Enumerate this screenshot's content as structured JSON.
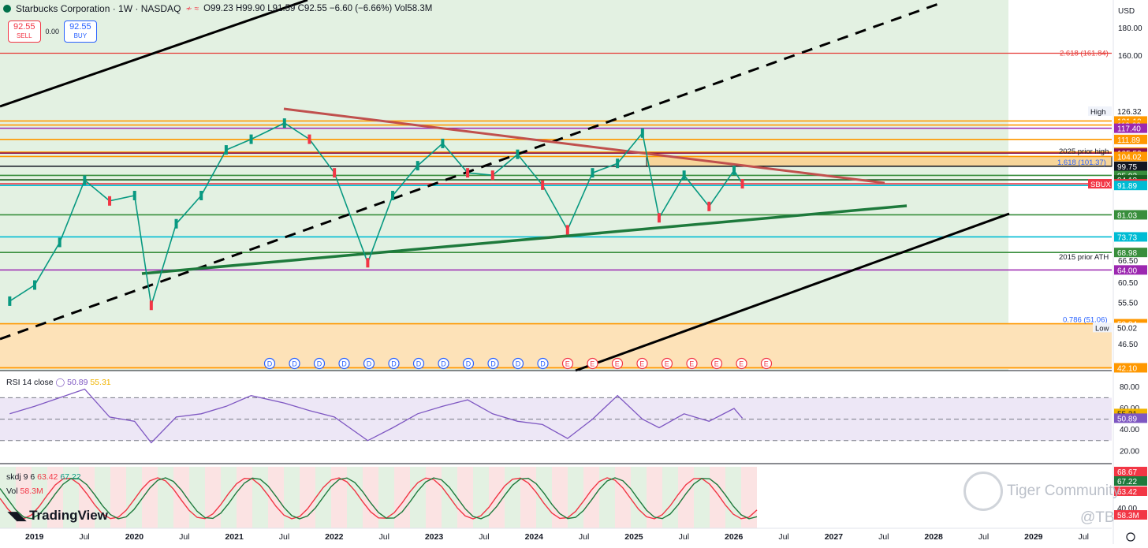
{
  "header": {
    "symbol_title": "Starbucks Corporation · 1W · NASDAQ",
    "ohlc": "O99.23 H99.90 L91.59 C92.55 −6.60 (−6.66%) Vol58.3M",
    "sell_price": "92.55",
    "sell_label": "SELL",
    "spread": "0.00",
    "buy_price": "92.55",
    "buy_label": "BUY",
    "currency": "USD"
  },
  "watermark": {
    "community": "Tiger Community",
    "handle": "@TB"
  },
  "branding": {
    "logo": "TradingView"
  },
  "chart_data": {
    "type": "line",
    "title": "Starbucks Corporation · 1W · NASDAQ",
    "price_scale_ticks": [
      "180.00",
      "160.00",
      "50.02",
      "46.50",
      "60.50",
      "55.50",
      "66.50"
    ],
    "price_ticks_numeric": [
      180,
      160,
      66.5,
      60.5,
      55.5,
      46.5
    ],
    "x_tick_labels": [
      "2019",
      "Jul",
      "2020",
      "Jul",
      "2021",
      "Jul",
      "2022",
      "Jul",
      "2023",
      "Jul",
      "2024",
      "Jul",
      "2025",
      "Jul",
      "2026",
      "Jul",
      "2027",
      "Jul",
      "2028",
      "Jul",
      "2029",
      "Jul"
    ],
    "price_series": {
      "name": "SBUX",
      "x": [
        "2018-10",
        "2019-01",
        "2019-04",
        "2019-07",
        "2019-10",
        "2020-01",
        "2020-03",
        "2020-06",
        "2020-09",
        "2020-12",
        "2021-03",
        "2021-07",
        "2021-10",
        "2022-01",
        "2022-05",
        "2022-08",
        "2022-11",
        "2023-02",
        "2023-05",
        "2023-08",
        "2023-11",
        "2024-02",
        "2024-05",
        "2024-08",
        "2024-11",
        "2025-02",
        "2025-04",
        "2025-07",
        "2025-10",
        "2026-01",
        "2026-02"
      ],
      "values": [
        56,
        60,
        72,
        94,
        86,
        88,
        55,
        78,
        88,
        107,
        112,
        120,
        112,
        97,
        66,
        88,
        100,
        110,
        97,
        96,
        105,
        92,
        76,
        97,
        101,
        115,
        80,
        96,
        84,
        98,
        92.55
      ]
    },
    "price_levels": [
      {
        "label": "High",
        "value": "126.32",
        "color": "#ffffff",
        "text": "#131722"
      },
      {
        "label": "",
        "value": "121.10",
        "color": "#ff9800"
      },
      {
        "label": "",
        "value": "119.02",
        "color": "#ff9800"
      },
      {
        "label": "",
        "value": "117.40",
        "color": "#9c27b0"
      },
      {
        "label": "",
        "value": "111.89",
        "color": "#ff9800"
      },
      {
        "label": "",
        "value": "106.00",
        "color": "#ff9800"
      },
      {
        "label": "",
        "value": "105.52",
        "color": "#880e4f"
      },
      {
        "label": "",
        "value": "104.02",
        "color": "#ff9800"
      },
      {
        "label": "",
        "value": "99.75",
        "color": "#131722"
      },
      {
        "label": "",
        "value": "95.92",
        "color": "#388e3c"
      },
      {
        "label": "",
        "value": "94.13",
        "color": "#1b5e20"
      },
      {
        "label": "SBUX",
        "value": "92.55",
        "color": "#f23645"
      },
      {
        "label": "",
        "value": "91.89",
        "color": "#00bcd4"
      },
      {
        "label": "",
        "value": "81.03",
        "color": "#388e3c"
      },
      {
        "label": "",
        "value": "73.73",
        "color": "#00bcd4"
      },
      {
        "label": "",
        "value": "68.98",
        "color": "#388e3c"
      },
      {
        "label": "",
        "value": "64.00",
        "color": "#9c27b0"
      },
      {
        "label": "",
        "value": "50.84",
        "color": "#ff9800"
      },
      {
        "label": "Low",
        "value": "50.02",
        "color": "#ffffff",
        "text": "#131722"
      },
      {
        "label": "",
        "value": "42.10",
        "color": "#ff9800"
      }
    ],
    "annotations": [
      "2.618 (161.84)",
      "2025 prior high",
      "1.618 (101.37)",
      "2015 prior ATH",
      "0.786 (51.06)"
    ],
    "event_markers": [
      "D",
      "D",
      "D",
      "D",
      "D",
      "D",
      "D",
      "D",
      "D",
      "D",
      "D",
      "D",
      "E",
      "E",
      "E",
      "E",
      "E",
      "E",
      "E",
      "E",
      "E"
    ],
    "rsi": {
      "title": "RSI 14 close",
      "rsi_value": "50.89",
      "ma_value": "55.31",
      "ticks": [
        "80.00",
        "60.00",
        "40.00",
        "20.00"
      ],
      "values": [
        55,
        62,
        70,
        78,
        52,
        48,
        28,
        52,
        55,
        62,
        72,
        65,
        58,
        52,
        30,
        42,
        55,
        62,
        68,
        55,
        48,
        45,
        32,
        50,
        72,
        50,
        42,
        55,
        48,
        60,
        50.89
      ]
    },
    "skdj": {
      "title": "skdj 9 6",
      "k_value": "63.42",
      "d_value": "67.22",
      "labels": [
        "68.67",
        "67.22",
        "63.42",
        "40.00"
      ]
    },
    "volume": {
      "title": "Vol",
      "value": "58.3M",
      "label": "58.3M"
    }
  }
}
